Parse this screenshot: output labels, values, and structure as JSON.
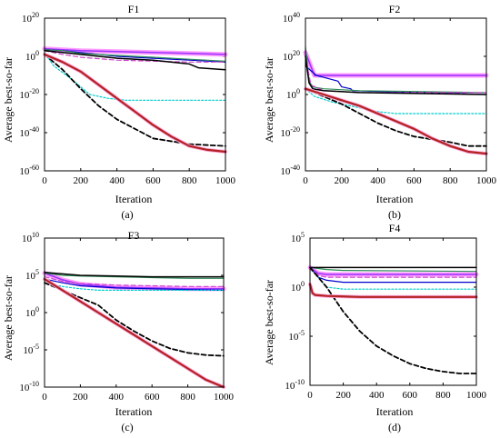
{
  "chart_data": [
    {
      "type": "line",
      "title": "F1",
      "xlabel": "Iteration",
      "ylabel": "Average best-so-far",
      "caption": "(a)",
      "y_scale": "log",
      "xlim": [
        0,
        1000
      ],
      "ylim_exp": [
        -60,
        20
      ],
      "xticks": [
        0,
        200,
        400,
        600,
        800,
        1000
      ],
      "yticks_exp": [
        -60,
        -40,
        -20,
        0,
        20
      ],
      "series": [
        {
          "color": "#ff99ff",
          "width": 5,
          "dash": "",
          "x": [
            0,
            100,
            200,
            400,
            600,
            800,
            1000
          ],
          "yexp": [
            4,
            3.5,
            3,
            2.5,
            2,
            1.5,
            1
          ]
        },
        {
          "color": "#9933ff",
          "width": 1.5,
          "dash": "",
          "x": [
            0,
            100,
            200,
            400,
            600,
            800,
            1000
          ],
          "yexp": [
            4,
            3.5,
            3,
            2.5,
            2,
            1.5,
            1
          ]
        },
        {
          "color": "#0000cc",
          "width": 1.2,
          "dash": "",
          "x": [
            0,
            100,
            200,
            400,
            600,
            800,
            1000
          ],
          "yexp": [
            3.5,
            3,
            2,
            0,
            -1,
            -2,
            -3
          ]
        },
        {
          "color": "#2e8b57",
          "width": 1.2,
          "dash": "",
          "x": [
            0,
            100,
            200,
            400,
            600,
            800,
            1000
          ],
          "yexp": [
            3.5,
            3,
            1.5,
            0.5,
            -0.5,
            -1.5,
            -2.5
          ]
        },
        {
          "color": "#cc44cc",
          "width": 1.2,
          "dash": "5,3",
          "x": [
            0,
            100,
            200,
            400,
            600,
            800,
            1000
          ],
          "yexp": [
            3,
            1,
            -0.5,
            -2,
            -2.5,
            -3,
            -3
          ]
        },
        {
          "color": "#000000",
          "width": 1.5,
          "dash": "",
          "x": [
            0,
            100,
            200,
            400,
            600,
            800,
            850,
            1000
          ],
          "yexp": [
            3,
            2,
            1,
            -1,
            -2,
            -4,
            -6,
            -7
          ]
        },
        {
          "color": "#00cccc",
          "width": 1.2,
          "dash": "2,2",
          "x": [
            0,
            50,
            150,
            250,
            350,
            450,
            1000
          ],
          "yexp": [
            2,
            -5,
            -12,
            -20,
            -22,
            -23,
            -23
          ]
        },
        {
          "color": "#000000",
          "width": 1.8,
          "dash": "5,3",
          "x": [
            0,
            100,
            200,
            300,
            400,
            600,
            800,
            1000
          ],
          "yexp": [
            1,
            -7,
            -17,
            -26,
            -33,
            -43,
            -46,
            -47
          ]
        },
        {
          "color": "#ffaadd",
          "width": 4,
          "dash": "",
          "x": [
            0,
            100,
            200,
            300,
            400,
            500,
            600,
            700,
            800,
            900,
            1000
          ],
          "yexp": [
            1,
            -3,
            -8,
            -15,
            -22,
            -29,
            -36,
            -42,
            -47,
            -49,
            -50
          ]
        },
        {
          "color": "#b22222",
          "width": 2.2,
          "dash": "",
          "x": [
            0,
            100,
            200,
            300,
            400,
            500,
            600,
            700,
            800,
            900,
            1000
          ],
          "yexp": [
            1,
            -3,
            -8,
            -15,
            -22,
            -29,
            -36,
            -42,
            -47,
            -49,
            -50
          ]
        }
      ]
    },
    {
      "type": "line",
      "title": "F2",
      "xlabel": "Iteration",
      "ylabel": "Average best-so-far",
      "caption": "(b)",
      "y_scale": "log",
      "xlim": [
        0,
        1000
      ],
      "ylim_exp": [
        -40,
        40
      ],
      "xticks": [
        0,
        200,
        400,
        600,
        800,
        1000
      ],
      "yticks_exp": [
        -40,
        -20,
        0,
        20,
        40
      ],
      "series": [
        {
          "color": "#ff99ff",
          "width": 5,
          "dash": "",
          "x": [
            0,
            50,
            100,
            1000
          ],
          "yexp": [
            22,
            10,
            10,
            10
          ]
        },
        {
          "color": "#9933ff",
          "width": 1.5,
          "dash": "",
          "x": [
            0,
            50,
            100,
            1000
          ],
          "yexp": [
            22,
            10,
            10,
            10
          ]
        },
        {
          "color": "#0000cc",
          "width": 1.2,
          "dash": "",
          "x": [
            0,
            60,
            100,
            180,
            200,
            250,
            260,
            1000
          ],
          "yexp": [
            15,
            10,
            9,
            7,
            4,
            3,
            2,
            0
          ]
        },
        {
          "color": "#2e8b57",
          "width": 1.2,
          "dash": "",
          "x": [
            0,
            20,
            40,
            100,
            300,
            1000
          ],
          "yexp": [
            25,
            7,
            4,
            3,
            2,
            1
          ]
        },
        {
          "color": "#cc44cc",
          "width": 1.2,
          "dash": "5,3",
          "x": [
            0,
            30,
            100,
            300,
            600,
            1000
          ],
          "yexp": [
            20,
            5,
            2,
            1,
            1,
            1
          ]
        },
        {
          "color": "#000000",
          "width": 1.5,
          "dash": "",
          "x": [
            0,
            20,
            40,
            100,
            300,
            1000
          ],
          "yexp": [
            20,
            6,
            3,
            2,
            1,
            0
          ]
        },
        {
          "color": "#00cccc",
          "width": 1.2,
          "dash": "2,2",
          "x": [
            0,
            50,
            150,
            300,
            400,
            500,
            1000
          ],
          "yexp": [
            3,
            -1,
            -4,
            -7,
            -9,
            -10,
            -10
          ]
        },
        {
          "color": "#000000",
          "width": 1.8,
          "dash": "5,3",
          "x": [
            0,
            100,
            200,
            300,
            400,
            500,
            600,
            800,
            900,
            1000
          ],
          "yexp": [
            3,
            -1,
            -5,
            -10,
            -15,
            -19,
            -22,
            -25,
            -27,
            -27
          ]
        },
        {
          "color": "#ffaadd",
          "width": 4,
          "dash": "",
          "x": [
            0,
            100,
            200,
            300,
            400,
            500,
            600,
            700,
            800,
            900,
            1000
          ],
          "yexp": [
            3,
            0,
            -3,
            -6,
            -10,
            -14,
            -18,
            -23,
            -27,
            -30,
            -31
          ]
        },
        {
          "color": "#b22222",
          "width": 2.2,
          "dash": "",
          "x": [
            0,
            100,
            200,
            300,
            400,
            500,
            600,
            700,
            800,
            900,
            1000
          ],
          "yexp": [
            3,
            0,
            -3,
            -6,
            -10,
            -14,
            -18,
            -23,
            -27,
            -30,
            -31
          ]
        }
      ]
    },
    {
      "type": "line",
      "title": "F3",
      "xlabel": "Iteration",
      "ylabel": "Average best-so-far",
      "caption": "(c)",
      "y_scale": "log",
      "xlim": [
        0,
        1000
      ],
      "ylim_exp": [
        -10,
        10
      ],
      "xticks": [
        0,
        200,
        400,
        600,
        800,
        1000
      ],
      "yticks_exp": [
        -10,
        -5,
        0,
        5,
        10
      ],
      "series": [
        {
          "color": "#ff99ff",
          "width": 5,
          "dash": "",
          "x": [
            0,
            100,
            200,
            400,
            600,
            800,
            1000
          ],
          "yexp": [
            5.3,
            4.4,
            3.8,
            3.4,
            3.3,
            3.2,
            3.2
          ]
        },
        {
          "color": "#9933ff",
          "width": 1.5,
          "dash": "",
          "x": [
            0,
            100,
            200,
            400,
            600,
            800,
            1000
          ],
          "yexp": [
            5.3,
            4.4,
            3.8,
            3.4,
            3.3,
            3.2,
            3.2
          ]
        },
        {
          "color": "#0000cc",
          "width": 1.2,
          "dash": "",
          "x": [
            0,
            100,
            200,
            400,
            600,
            800,
            1000
          ],
          "yexp": [
            4.5,
            4,
            3.6,
            3.3,
            3.2,
            3.1,
            3.0
          ]
        },
        {
          "color": "#2e8b57",
          "width": 1.2,
          "dash": "",
          "x": [
            0,
            100,
            200,
            400,
            600,
            800,
            1000
          ],
          "yexp": [
            5.3,
            5,
            4.9,
            4.8,
            4.7,
            4.6,
            4.6
          ]
        },
        {
          "color": "#cc44cc",
          "width": 1.2,
          "dash": "5,3",
          "x": [
            0,
            100,
            200,
            400,
            600,
            800,
            1000
          ],
          "yexp": [
            4.8,
            4.2,
            3.9,
            3.7,
            3.6,
            3.5,
            3.5
          ]
        },
        {
          "color": "#000000",
          "width": 1.5,
          "dash": "",
          "x": [
            0,
            100,
            200,
            400,
            600,
            800,
            1000
          ],
          "yexp": [
            5.4,
            5.2,
            5,
            4.9,
            4.8,
            4.8,
            4.8
          ]
        },
        {
          "color": "#00cccc",
          "width": 1.2,
          "dash": "2,2",
          "x": [
            0,
            100,
            200,
            300,
            400,
            600,
            1000
          ],
          "yexp": [
            4,
            3.5,
            3.2,
            3,
            3,
            3,
            3
          ]
        },
        {
          "color": "#000000",
          "width": 1.8,
          "dash": "5,3",
          "x": [
            0,
            100,
            200,
            300,
            400,
            500,
            600,
            700,
            800,
            900,
            1000
          ],
          "yexp": [
            4,
            3,
            2,
            1,
            -1,
            -2.5,
            -3.8,
            -4.8,
            -5.4,
            -5.7,
            -5.8
          ]
        },
        {
          "color": "#ffaadd",
          "width": 4,
          "dash": "",
          "x": [
            0,
            100,
            200,
            300,
            400,
            500,
            600,
            700,
            800,
            900,
            1000
          ],
          "yexp": [
            4.5,
            3,
            1.5,
            0,
            -1.5,
            -3,
            -4.5,
            -6,
            -7.5,
            -9,
            -10
          ]
        },
        {
          "color": "#b22222",
          "width": 2.2,
          "dash": "",
          "x": [
            0,
            100,
            200,
            300,
            400,
            500,
            600,
            700,
            800,
            900,
            1000
          ],
          "yexp": [
            4.5,
            3,
            1.5,
            0,
            -1.5,
            -3,
            -4.5,
            -6,
            -7.5,
            -9,
            -10
          ]
        }
      ]
    },
    {
      "type": "line",
      "title": "F4",
      "xlabel": "Iteration",
      "ylabel": "Average best-so-far",
      "caption": "(d)",
      "y_scale": "log",
      "xlim": [
        0,
        1000
      ],
      "ylim_exp": [
        -10,
        5
      ],
      "xticks": [
        0,
        200,
        400,
        600,
        800,
        1000
      ],
      "yticks_exp": [
        -10,
        -5,
        0,
        5
      ],
      "series": [
        {
          "color": "#ff99ff",
          "width": 5,
          "dash": "",
          "x": [
            0,
            50,
            100,
            200,
            1000
          ],
          "yexp": [
            2,
            1.4,
            1.3,
            1.3,
            1.3
          ]
        },
        {
          "color": "#9933ff",
          "width": 1.5,
          "dash": "",
          "x": [
            0,
            50,
            100,
            200,
            1000
          ],
          "yexp": [
            2,
            1.4,
            1.3,
            1.3,
            1.3
          ]
        },
        {
          "color": "#0000cc",
          "width": 1.2,
          "dash": "",
          "x": [
            0,
            50,
            100,
            200,
            1000
          ],
          "yexp": [
            2,
            1,
            0.7,
            0.5,
            0.5
          ]
        },
        {
          "color": "#2e8b57",
          "width": 1.2,
          "dash": "",
          "x": [
            0,
            100,
            200,
            1000
          ],
          "yexp": [
            2,
            1.8,
            1.7,
            1.6
          ]
        },
        {
          "color": "#cc44cc",
          "width": 1.2,
          "dash": "5,3",
          "x": [
            0,
            50,
            100,
            200,
            1000
          ],
          "yexp": [
            2,
            1.2,
            1,
            1,
            1
          ]
        },
        {
          "color": "#000000",
          "width": 1.5,
          "dash": "",
          "x": [
            0,
            1000
          ],
          "yexp": [
            2,
            2
          ]
        },
        {
          "color": "#00cccc",
          "width": 1.2,
          "dash": "2,2",
          "x": [
            0,
            100,
            200,
            1000
          ],
          "yexp": [
            2,
            0,
            -0.2,
            -0.2
          ]
        },
        {
          "color": "#000000",
          "width": 1.8,
          "dash": "5,3",
          "x": [
            0,
            100,
            200,
            300,
            400,
            500,
            600,
            700,
            800,
            900,
            1000
          ],
          "yexp": [
            2,
            0,
            -2.5,
            -4.5,
            -6,
            -7,
            -7.8,
            -8.3,
            -8.6,
            -8.8,
            -8.8
          ]
        },
        {
          "color": "#ffaadd",
          "width": 4,
          "dash": "",
          "x": [
            0,
            15,
            30,
            100,
            300,
            600,
            1000
          ],
          "yexp": [
            0.3,
            -0.6,
            -0.8,
            -0.9,
            -1,
            -1,
            -1
          ]
        },
        {
          "color": "#b22222",
          "width": 2.2,
          "dash": "",
          "x": [
            0,
            15,
            30,
            100,
            300,
            600,
            1000
          ],
          "yexp": [
            0.3,
            -0.6,
            -0.8,
            -0.9,
            -1,
            -1,
            -1
          ]
        }
      ]
    }
  ]
}
